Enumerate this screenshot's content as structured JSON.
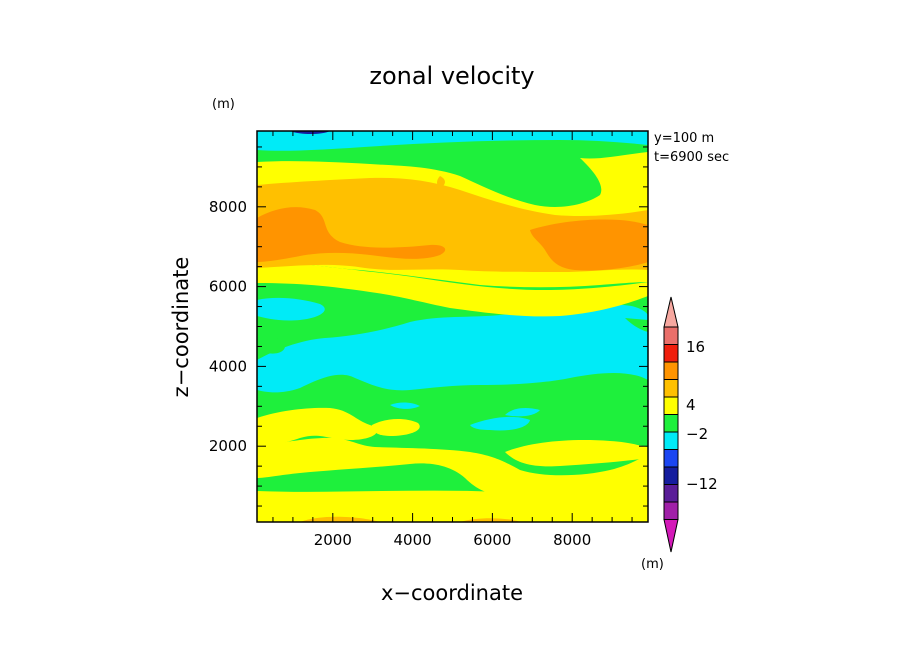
{
  "chart_data": {
    "type": "heatmap",
    "title": "zonal velocity",
    "xlabel": "x−coordinate",
    "ylabel": "z−coordinate",
    "y_unit": "(m)",
    "colorbar_unit": "(m)",
    "annotations": [
      "y=100 m",
      "t=6900 sec"
    ],
    "xlim": [
      100,
      9900
    ],
    "ylim": [
      100,
      9900
    ],
    "x_ticks": [
      2000,
      4000,
      6000,
      8000
    ],
    "y_ticks": [
      2000,
      4000,
      6000,
      8000
    ],
    "colorbar": {
      "levels": [
        {
          "color": "#d319b8",
          "bin": "< -16"
        },
        {
          "color": "#a020a8",
          "bin": "-16 to -12"
        },
        {
          "color": "#5a1d98",
          "bin": "-12 to -8"
        },
        {
          "color": "#151d9e",
          "bin": "-8 to -6"
        },
        {
          "color": "#1b46f2",
          "bin": "-6 to -2"
        },
        {
          "color": "#00ebf7",
          "bin": "-2 to 0"
        },
        {
          "color": "#1ef03c",
          "bin": "0 to 2"
        },
        {
          "color": "#ffff00",
          "bin": "2 to 4"
        },
        {
          "color": "#ffc000",
          "bin": "4 to 6"
        },
        {
          "color": "#ff9400",
          "bin": "6 to 8"
        },
        {
          "color": "#f01e0c",
          "bin": "8 to 12"
        },
        {
          "color": "#ea6f6a",
          "bin": "12 to 16"
        },
        {
          "color": "#f7a8a0",
          "bin": "> 16"
        }
      ],
      "tick_labels": [
        "16",
        "4",
        "−2",
        "−12"
      ]
    },
    "bands": [
      {
        "z": [
          100,
          300
        ],
        "class": "yellow/orange"
      },
      {
        "z": [
          300,
          800
        ],
        "class": "yellow"
      },
      {
        "z": [
          800,
          1500
        ],
        "class": "green"
      },
      {
        "z": [
          1500,
          2400
        ],
        "class": "yellow/green"
      },
      {
        "z": [
          2400,
          5900
        ],
        "class": "green/cyan"
      },
      {
        "z": [
          5900,
          6800
        ],
        "class": "yellow"
      },
      {
        "z": [
          6500,
          8000
        ],
        "class": "orange"
      },
      {
        "z": [
          8000,
          9000
        ],
        "class": "yellow"
      },
      {
        "z": [
          9000,
          9500
        ],
        "class": "green"
      },
      {
        "z": [
          9500,
          9900
        ],
        "class": "cyan/blue"
      }
    ]
  }
}
